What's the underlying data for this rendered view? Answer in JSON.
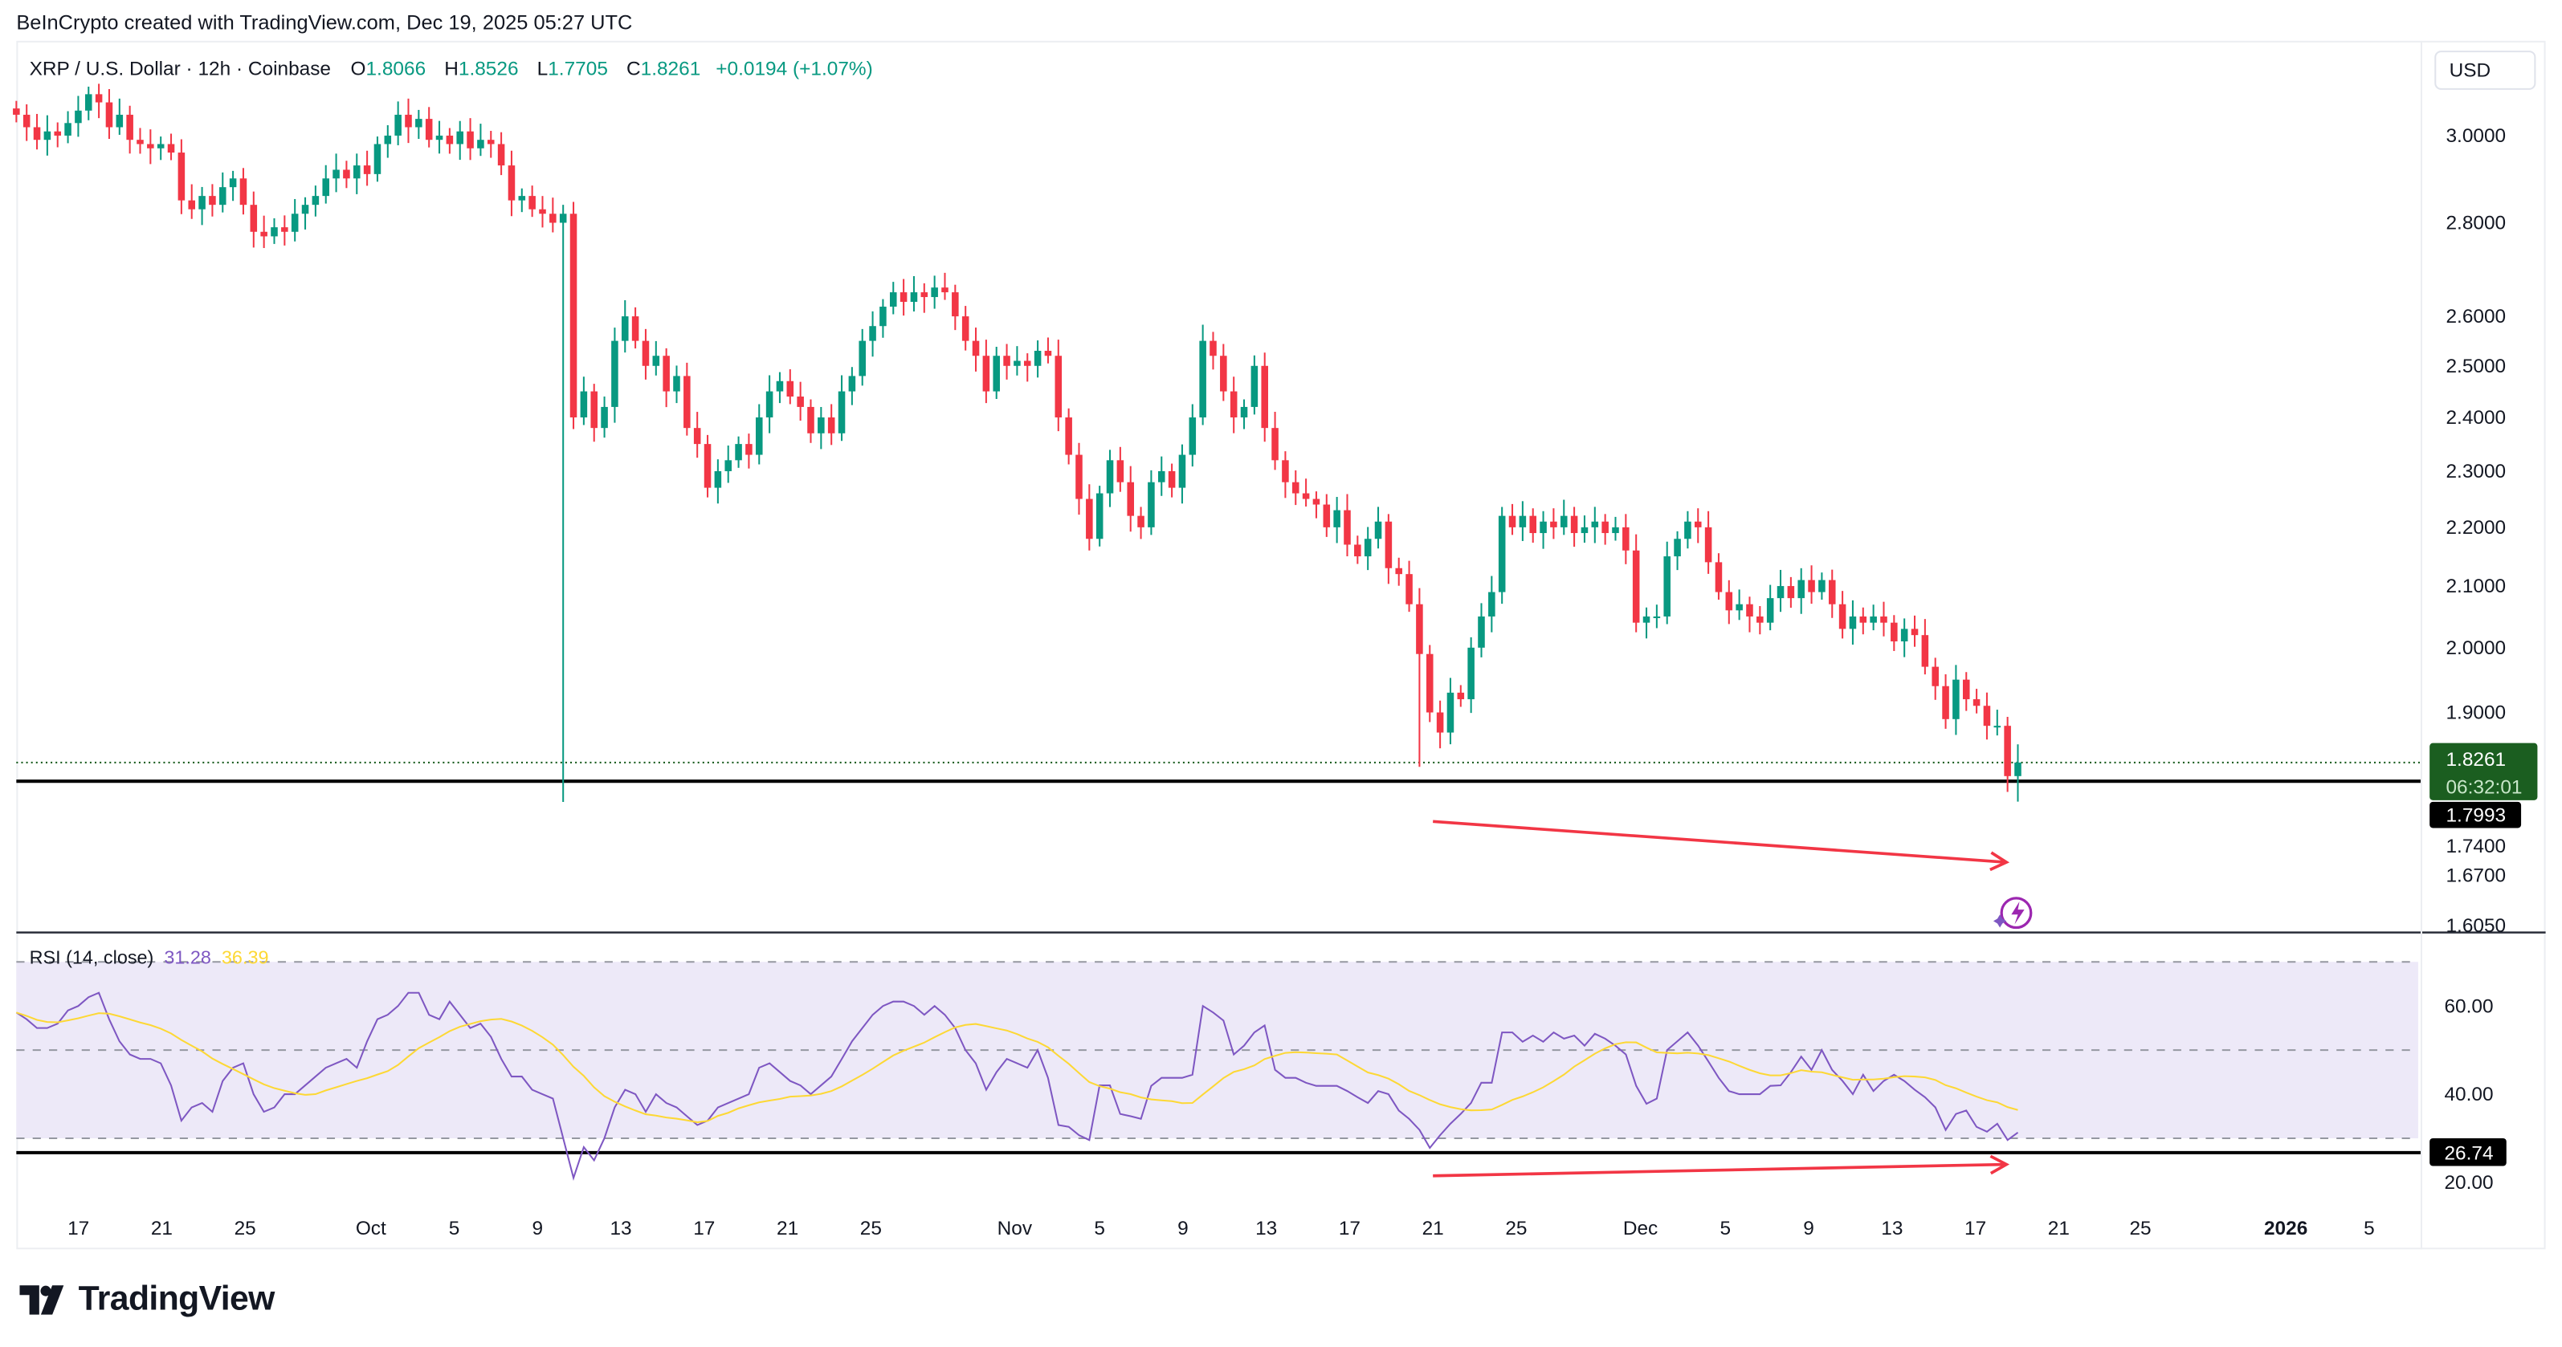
{
  "attribution": "BeInCrypto created with TradingView.com, Dec 19, 2025 05:27 UTC",
  "legend": {
    "symbol": "XRP / U.S. Dollar · 12h · Coinbase",
    "o_label": "O",
    "o": "1.8066",
    "h_label": "H",
    "h": "1.8526",
    "l_label": "L",
    "l": "1.7705",
    "c_label": "C",
    "c": "1.8261",
    "change": "+0.0194 (+1.07%)"
  },
  "currency_button": "USD",
  "price_axis": {
    "ticks": [
      "3.0000",
      "2.8000",
      "2.6000",
      "2.5000",
      "2.4000",
      "2.3000",
      "2.2000",
      "2.1000",
      "2.0000",
      "1.9000",
      "1.7400",
      "1.6700",
      "1.6050"
    ],
    "current_price": "1.8261",
    "countdown": "06:32:01",
    "support_label": "1.7993"
  },
  "rsi": {
    "title": "RSI (14, close)",
    "value": "31.28",
    "ma_value": "36.39",
    "ticks": [
      "60.00",
      "40.00",
      "20.00"
    ],
    "level_label": "26.74"
  },
  "x_axis": [
    "17",
    "21",
    "25",
    "Oct",
    "5",
    "9",
    "13",
    "17",
    "21",
    "25",
    "Nov",
    "5",
    "9",
    "13",
    "17",
    "21",
    "25",
    "Dec",
    "5",
    "9",
    "13",
    "17",
    "21",
    "25",
    "2026",
    "5"
  ],
  "logo": "TradingView",
  "colors": {
    "up": "#089981",
    "down": "#f23645",
    "rsi": "#7e57c2",
    "rsi_ma": "#fdd835",
    "arrow": "#f23645",
    "band": "#ede9f8"
  },
  "icons": {
    "divergence_alert": "lightning-icon",
    "logo": "tradingview-logo-icon"
  },
  "chart_data": [
    {
      "type": "candlestick",
      "title": "XRP / U.S. Dollar · 12h · Coinbase",
      "scale": "log",
      "ylim": [
        1.605,
        3.12
      ],
      "x_start": "2025-09-14",
      "x_end": "2025-12-19",
      "interval": "12h",
      "closes": [
        3.05,
        3.02,
        2.99,
        3.01,
        3.0,
        3.03,
        3.06,
        3.1,
        3.08,
        3.02,
        3.05,
        2.99,
        2.98,
        2.97,
        2.98,
        2.96,
        2.85,
        2.83,
        2.86,
        2.84,
        2.88,
        2.9,
        2.84,
        2.78,
        2.77,
        2.79,
        2.78,
        2.82,
        2.84,
        2.86,
        2.9,
        2.92,
        2.9,
        2.93,
        2.91,
        2.98,
        3.0,
        3.05,
        3.02,
        3.04,
        2.99,
        3.0,
        2.98,
        3.01,
        2.97,
        2.99,
        2.98,
        2.93,
        2.85,
        2.86,
        2.83,
        2.82,
        2.8,
        2.82,
        2.4,
        2.45,
        2.38,
        2.42,
        2.55,
        2.6,
        2.55,
        2.5,
        2.52,
        2.45,
        2.48,
        2.38,
        2.35,
        2.27,
        2.3,
        2.32,
        2.35,
        2.33,
        2.4,
        2.45,
        2.47,
        2.44,
        2.42,
        2.37,
        2.4,
        2.37,
        2.45,
        2.48,
        2.55,
        2.58,
        2.62,
        2.65,
        2.63,
        2.65,
        2.64,
        2.66,
        2.65,
        2.6,
        2.55,
        2.52,
        2.45,
        2.52,
        2.5,
        2.51,
        2.5,
        2.53,
        2.52,
        2.4,
        2.33,
        2.25,
        2.18,
        2.26,
        2.32,
        2.28,
        2.22,
        2.2,
        2.28,
        2.3,
        2.27,
        2.33,
        2.4,
        2.55,
        2.52,
        2.45,
        2.4,
        2.42,
        2.5,
        2.38,
        2.32,
        2.28,
        2.26,
        2.25,
        2.24,
        2.2,
        2.23,
        2.17,
        2.15,
        2.18,
        2.21,
        2.13,
        2.12,
        2.07,
        1.99,
        1.9,
        1.87,
        1.93,
        1.92,
        2.0,
        2.05,
        2.09,
        2.22,
        2.2,
        2.22,
        2.19,
        2.21,
        2.2,
        2.22,
        2.19,
        2.2,
        2.21,
        2.19,
        2.2,
        2.16,
        2.04,
        2.05,
        2.05,
        2.15,
        2.18,
        2.21,
        2.2,
        2.14,
        2.09,
        2.06,
        2.07,
        2.05,
        2.04,
        2.08,
        2.1,
        2.08,
        2.11,
        2.09,
        2.11,
        2.07,
        2.03,
        2.05,
        2.04,
        2.05,
        2.04,
        2.01,
        2.03,
        2.02,
        1.97,
        1.94,
        1.89,
        1.95,
        1.92,
        1.91,
        1.88,
        1.88,
        1.8066,
        1.8261
      ],
      "notable_lows": [
        {
          "date": "Oct 10",
          "low": 1.77
        },
        {
          "date": "Nov 21",
          "low": 1.82
        }
      ],
      "last_candle": {
        "open": 1.8066,
        "high": 1.8526,
        "low": 1.7705,
        "close": 1.8261
      },
      "support_level": 1.7993,
      "annotation": "red arrow: lower low (Nov 21 → Dec 19)"
    },
    {
      "type": "line",
      "title": "RSI (14, close)",
      "ylim": [
        15,
        72
      ],
      "bands": [
        70,
        50,
        30
      ],
      "values": [
        58.5,
        57,
        55,
        55,
        56,
        59,
        60,
        62,
        63,
        57,
        52,
        49,
        48,
        48,
        47,
        42,
        34,
        37,
        38,
        36,
        43,
        46,
        47,
        40,
        36,
        37,
        40,
        40,
        42,
        44,
        46,
        47,
        48,
        46,
        52,
        57,
        58,
        60,
        63,
        63,
        58,
        57,
        61,
        58,
        55,
        56,
        53,
        48,
        44,
        44,
        41,
        40,
        39,
        30,
        21,
        28,
        25,
        30,
        37,
        41,
        40,
        36,
        40,
        38,
        37,
        35,
        33,
        34,
        37,
        38,
        39,
        40,
        46,
        47,
        45,
        43,
        42,
        40,
        42,
        44,
        48,
        52,
        55,
        58,
        60,
        61,
        61,
        60,
        58,
        60,
        58,
        55,
        50,
        47,
        41,
        45,
        48,
        47,
        46,
        50,
        43.7,
        33,
        32.6,
        30.7,
        29.6,
        42,
        42,
        35.5,
        35,
        34.4,
        41.9,
        43.7,
        43.7,
        43.7,
        44.4,
        60,
        58.5,
        56.7,
        49,
        51,
        54,
        55.6,
        45.5,
        43.7,
        43.7,
        42.6,
        41.9,
        41.9,
        41.9,
        40.7,
        39.3,
        38,
        40.7,
        40,
        36.3,
        34.4,
        31.9,
        27.8,
        30.7,
        33.3,
        35.5,
        38,
        42.6,
        42.6,
        54,
        54,
        51.9,
        53.3,
        51.9,
        54,
        52.6,
        53.3,
        51,
        53.7,
        52.6,
        51,
        49,
        41.9,
        37.8,
        39,
        50,
        52,
        54,
        51,
        47.4,
        43.7,
        40.7,
        40,
        40,
        40,
        41.9,
        42,
        45,
        48.5,
        45.5,
        50,
        45.5,
        43,
        40,
        44.4,
        40.7,
        43,
        44.4,
        43,
        41,
        39.3,
        37,
        31.9,
        35.5,
        36.3,
        32.6,
        31.5,
        33.3,
        29.6,
        31.28
      ],
      "level_line": 26.74,
      "annotation": "red arrow: higher low (Nov 21 → Dec 19)"
    }
  ]
}
